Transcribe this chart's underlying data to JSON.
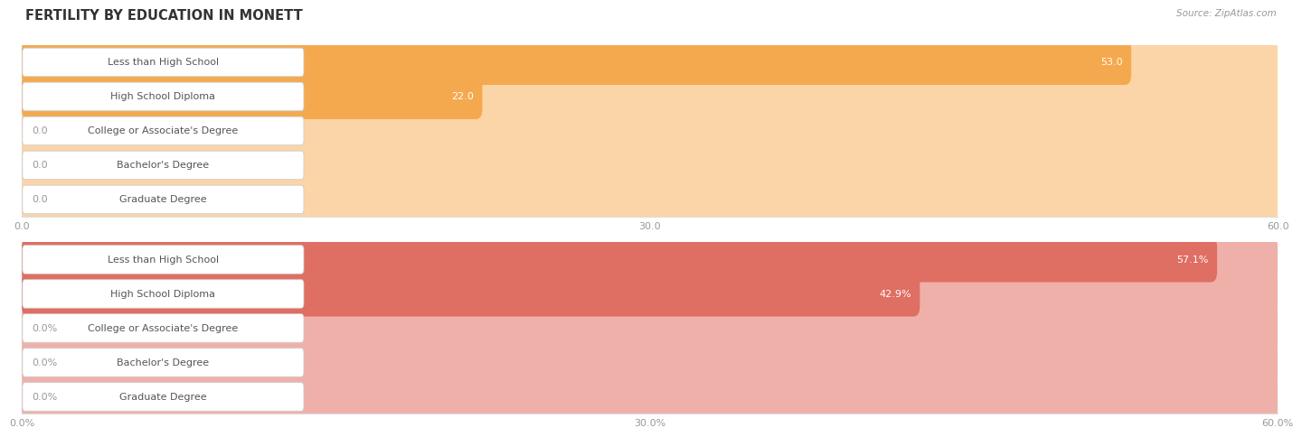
{
  "title": "FERTILITY BY EDUCATION IN MONETT",
  "source": "Source: ZipAtlas.com",
  "background_color": "#ffffff",
  "chart1": {
    "categories": [
      "Less than High School",
      "High School Diploma",
      "College or Associate's Degree",
      "Bachelor's Degree",
      "Graduate Degree"
    ],
    "values": [
      53.0,
      22.0,
      0.0,
      0.0,
      0.0
    ],
    "bar_color": "#f5a94e",
    "bar_color_light": "#fbd5a8",
    "value_labels": [
      "53.0",
      "22.0",
      "0.0",
      "0.0",
      "0.0"
    ],
    "xlim": [
      0,
      60
    ],
    "xticks": [
      0.0,
      30.0,
      60.0
    ],
    "xticklabels": [
      "0.0",
      "30.0",
      "60.0"
    ]
  },
  "chart2": {
    "categories": [
      "Less than High School",
      "High School Diploma",
      "College or Associate's Degree",
      "Bachelor's Degree",
      "Graduate Degree"
    ],
    "values": [
      57.1,
      42.9,
      0.0,
      0.0,
      0.0
    ],
    "bar_color": "#df6e63",
    "bar_color_light": "#f0b0aa",
    "value_labels": [
      "57.1%",
      "42.9%",
      "0.0%",
      "0.0%",
      "0.0%"
    ],
    "xlim": [
      0,
      60
    ],
    "xticks": [
      0.0,
      30.0,
      60.0
    ],
    "xticklabels": [
      "0.0%",
      "30.0%",
      "60.0%"
    ]
  },
  "row_colors": [
    "#efefef",
    "#f7f7f7"
  ],
  "label_text_color": "#555555",
  "value_text_color_on_bar": "#ffffff",
  "value_text_color_off_bar": "#999999",
  "grid_color": "#dddddd",
  "title_fontsize": 10.5,
  "label_fontsize": 8,
  "value_fontsize": 8,
  "tick_fontsize": 8,
  "source_fontsize": 7.5
}
